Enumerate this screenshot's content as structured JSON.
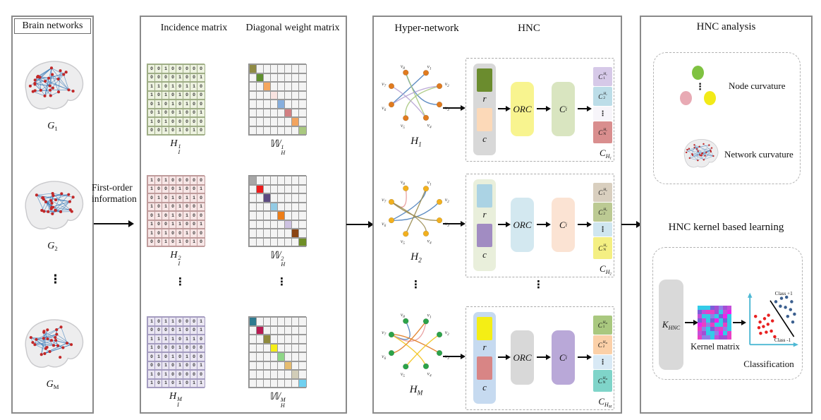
{
  "brain_panel": {
    "title": "Brain networks",
    "dots": "⋮",
    "items": [
      {
        "base": "G",
        "sub": "1"
      },
      {
        "base": "G",
        "sub": "2"
      },
      {
        "base": "G",
        "sub": "M"
      }
    ]
  },
  "first_order": {
    "label": "First-order information"
  },
  "matrix_panel": {
    "incidence_title": "Incidence matrix",
    "weight_title": "Diagonal weight matrix",
    "dots": "⋮",
    "rows": [
      {
        "inc_label": {
          "base": "H",
          "sub": "I",
          "sup": "1"
        },
        "w_label": {
          "base": "𝕎",
          "sub": "H",
          "sup": "1"
        },
        "inc_bg": "#edf2e0",
        "inc_border": "#9fae86",
        "values": [
          [
            0,
            0,
            1,
            0,
            0,
            0,
            0,
            0
          ],
          [
            0,
            0,
            0,
            0,
            1,
            0,
            0,
            1
          ],
          [
            1,
            1,
            0,
            1,
            0,
            1,
            1,
            0
          ],
          [
            1,
            0,
            1,
            0,
            1,
            0,
            0,
            0
          ],
          [
            0,
            1,
            0,
            1,
            0,
            1,
            0,
            0
          ],
          [
            0,
            1,
            0,
            0,
            1,
            0,
            0,
            1
          ],
          [
            1,
            0,
            1,
            0,
            0,
            0,
            0,
            0
          ],
          [
            0,
            0,
            1,
            0,
            1,
            0,
            1,
            0
          ]
        ],
        "diag": [
          "#8f8a44",
          "#5f8f2f",
          "#f5a75f",
          "#f9e3e0",
          "#86aedd",
          "#d27f82",
          "#f2a45f",
          "#a9c87f"
        ]
      },
      {
        "inc_label": {
          "base": "H",
          "sub": "I",
          "sup": "2"
        },
        "w_label": {
          "base": "𝕎",
          "sub": "H",
          "sup": "2"
        },
        "inc_bg": "#f7e6e6",
        "inc_border": "#c09c9c",
        "values": [
          [
            1,
            0,
            1,
            0,
            0,
            0,
            0,
            0
          ],
          [
            1,
            0,
            0,
            0,
            1,
            0,
            0,
            1
          ],
          [
            0,
            1,
            0,
            1,
            0,
            1,
            1,
            0
          ],
          [
            1,
            0,
            1,
            0,
            1,
            0,
            0,
            1
          ],
          [
            0,
            1,
            0,
            1,
            0,
            1,
            0,
            0
          ],
          [
            1,
            0,
            0,
            1,
            1,
            0,
            0,
            1
          ],
          [
            1,
            0,
            1,
            0,
            0,
            1,
            0,
            0
          ],
          [
            0,
            0,
            1,
            0,
            1,
            0,
            1,
            0
          ]
        ],
        "diag": [
          "#a6a6a6",
          "#ee1c1c",
          "#5c4a80",
          "#93cbe4",
          "#ed7d17",
          "#cdc2e2",
          "#8a4413",
          "#6f8f26"
        ]
      },
      {
        "inc_label": {
          "base": "H",
          "sub": "I",
          "sup": "M"
        },
        "w_label": {
          "base": "𝕎",
          "sub": "H",
          "sup": "M"
        },
        "inc_bg": "#eae6f2",
        "inc_border": "#a49cc0",
        "values": [
          [
            1,
            0,
            1,
            1,
            0,
            0,
            0,
            1
          ],
          [
            0,
            0,
            0,
            0,
            1,
            0,
            0,
            1
          ],
          [
            1,
            1,
            1,
            1,
            0,
            1,
            1,
            0
          ],
          [
            1,
            0,
            0,
            0,
            1,
            0,
            0,
            0
          ],
          [
            0,
            1,
            0,
            1,
            0,
            1,
            0,
            0
          ],
          [
            0,
            0,
            1,
            0,
            1,
            0,
            0,
            1
          ],
          [
            1,
            0,
            1,
            0,
            0,
            0,
            0,
            0
          ],
          [
            1,
            0,
            1,
            0,
            1,
            0,
            1,
            1
          ]
        ],
        "diag": [
          "#2e7a8f",
          "#b81a52",
          "#8f8a3d",
          "#f5ee18",
          "#8ed687",
          "#e6bc70",
          "#d2cdb8",
          "#6fd0f0"
        ]
      }
    ]
  },
  "hyper_panel": {
    "title": "Hyper-network",
    "hnc_title": "HNC",
    "dots": "⋮",
    "node_base": "v",
    "rows": [
      {
        "graph_label": {
          "base": "H",
          "sub": "1"
        },
        "node_labels": [
          "1",
          "2",
          "3",
          "4",
          "5",
          "6",
          "7",
          "8"
        ],
        "node_color": "#e07b1f",
        "edge_palette": [
          "#4a7ebb",
          "#a9c87f",
          "#b7a4d4"
        ],
        "edges": [
          [
            1,
            6,
            0
          ],
          [
            8,
            3,
            0
          ],
          [
            8,
            4,
            1
          ],
          [
            2,
            5,
            1
          ],
          [
            7,
            4,
            2
          ],
          [
            2,
            6,
            2
          ]
        ],
        "rc_bg": "#d8d8d8",
        "r_color": "#6b8c2e",
        "c_color": "#fcd9b8",
        "r_label": "r",
        "c_label": "c",
        "orc_label": "ORC",
        "orc_bg": "#f8f48f",
        "ci_label": {
          "base": "C",
          "sub": "i"
        },
        "ci_bg": "#d9e5c0",
        "out_cells": [
          {
            "base": "C",
            "sub": "1",
            "sup_base": "H",
            "sup_sub": "1",
            "bg": "#d6c9e8"
          },
          {
            "base": "C",
            "sub": "2",
            "sup_base": "H",
            "sup_sub": "1",
            "bg": "#bcdde8"
          },
          {
            "dots": "⋮",
            "bg": "#f7f5fa"
          },
          {
            "base": "C",
            "sub": "N",
            "sup_base": "H",
            "sup_sub": "1",
            "bg": "#d98e8e"
          }
        ],
        "out_label": {
          "base": "C",
          "sub_base": "H",
          "sub_sub": "1"
        }
      },
      {
        "graph_label": {
          "base": "H",
          "sub": "2"
        },
        "node_labels": [
          "1",
          "2",
          "3",
          "4",
          "5",
          "6",
          "7",
          "8"
        ],
        "node_color": "#f2b01e",
        "edge_palette": [
          "#e89a9a",
          "#4a7ebb",
          "#9a8b4f"
        ],
        "edges": [
          [
            8,
            7,
            0
          ],
          [
            1,
            6,
            1
          ],
          [
            2,
            6,
            1
          ],
          [
            7,
            4,
            2
          ],
          [
            1,
            5,
            2
          ],
          [
            3,
            7,
            2
          ]
        ],
        "rc_bg": "#e9efdb",
        "r_color": "#abd3e4",
        "c_color": "#a18cc2",
        "r_label": "r",
        "c_label": "c",
        "orc_label": "ORC",
        "orc_bg": "#d3e8f0",
        "ci_label": {
          "base": "C",
          "sub": "i"
        },
        "ci_bg": "#fbe3d3",
        "out_cells": [
          {
            "base": "C",
            "sub": "1",
            "sup_base": "H",
            "sup_sub": "2",
            "bg": "#d9cfbf"
          },
          {
            "base": "C",
            "sub": "2",
            "sup_base": "H",
            "sup_sub": "2",
            "bg": "#bcca93"
          },
          {
            "dots": "⋮",
            "bg": "#cfe6f0"
          },
          {
            "base": "C",
            "sub": "N",
            "sup_base": "H",
            "sup_sub": "2",
            "bg": "#f4ef82"
          }
        ],
        "out_label": {
          "base": "C",
          "sub_base": "H",
          "sub_sub": "2"
        }
      },
      {
        "graph_label": {
          "base": "H",
          "sub": "M"
        },
        "node_labels": [
          "1",
          "2",
          "3",
          "4",
          "5",
          "6",
          "7",
          "8"
        ],
        "node_color": "#2ca349",
        "edge_palette": [
          "#4a7ebb",
          "#e89a9a",
          "#e07b1f",
          "#f2c218"
        ],
        "edges": [
          [
            8,
            7,
            0
          ],
          [
            7,
            1,
            1
          ],
          [
            1,
            6,
            2
          ],
          [
            3,
            7,
            2
          ],
          [
            2,
            5,
            3
          ],
          [
            4,
            7,
            3
          ]
        ],
        "rc_bg": "#c6daf0",
        "r_color": "#f4ee15",
        "c_color": "#d88585",
        "r_label": "r",
        "c_label": "c",
        "orc_label": "ORC",
        "orc_bg": "#d8d8d8",
        "ci_label": {
          "base": "C",
          "sub": "i"
        },
        "ci_bg": "#b9a8d8",
        "out_cells": [
          {
            "base": "C",
            "sub": "1",
            "sup_base": "H",
            "sup_sub": "M",
            "bg": "#a9c87f"
          },
          {
            "base": "C",
            "sub": "2",
            "sup_base": "H",
            "sup_sub": "M",
            "bg": "#fbd0a8"
          },
          {
            "dots": "⋮",
            "bg": "#d8e9f5"
          },
          {
            "base": "C",
            "sub": "N",
            "sup_base": "H",
            "sup_sub": "M",
            "bg": "#7fd4c9"
          }
        ],
        "out_label": {
          "base": "C",
          "sub_base": "H",
          "sub_sub": "M"
        }
      }
    ]
  },
  "analysis_panel": {
    "title": "HNC analysis",
    "dots": "⋮",
    "node_curvature_label": "Node curvature",
    "network_curvature_label": "Network curvature",
    "ellipse_colors": [
      "#7fc241",
      "#e8aab4",
      "#f2ea18"
    ]
  },
  "kernel_panel": {
    "title": "HNC kernel based learning",
    "k_label": {
      "base": "K",
      "sub": "HNC"
    },
    "kernel_matrix_label": "Kernel matrix",
    "kernel_palette": [
      "#ee22ee",
      "#a34fd4",
      "#7a5fd9",
      "#c44fd9",
      "#33cbe8",
      "#8f7fe8",
      "#e840c4"
    ],
    "classification": {
      "label": "Classification",
      "class_pos_label": "Class +1",
      "class_neg_label": "Class -1",
      "axis_color": "#4db8d4",
      "pos_color": "#3b5f8f",
      "neg_color": "#e82020",
      "pos_points": [
        [
          60,
          22
        ],
        [
          70,
          16
        ],
        [
          79,
          14
        ],
        [
          88,
          22
        ],
        [
          68,
          30
        ],
        [
          77,
          32
        ],
        [
          86,
          36
        ],
        [
          93,
          44
        ],
        [
          81,
          48
        ],
        [
          90,
          58
        ]
      ],
      "neg_points": [
        [
          24,
          48
        ],
        [
          32,
          58
        ],
        [
          40,
          52
        ],
        [
          47,
          46
        ],
        [
          30,
          68
        ],
        [
          38,
          66
        ],
        [
          46,
          62
        ],
        [
          54,
          56
        ],
        [
          33,
          78
        ],
        [
          43,
          76
        ],
        [
          52,
          74
        ],
        [
          58,
          84
        ]
      ],
      "line": [
        [
          50,
          20
        ],
        [
          92,
          84
        ]
      ]
    }
  }
}
